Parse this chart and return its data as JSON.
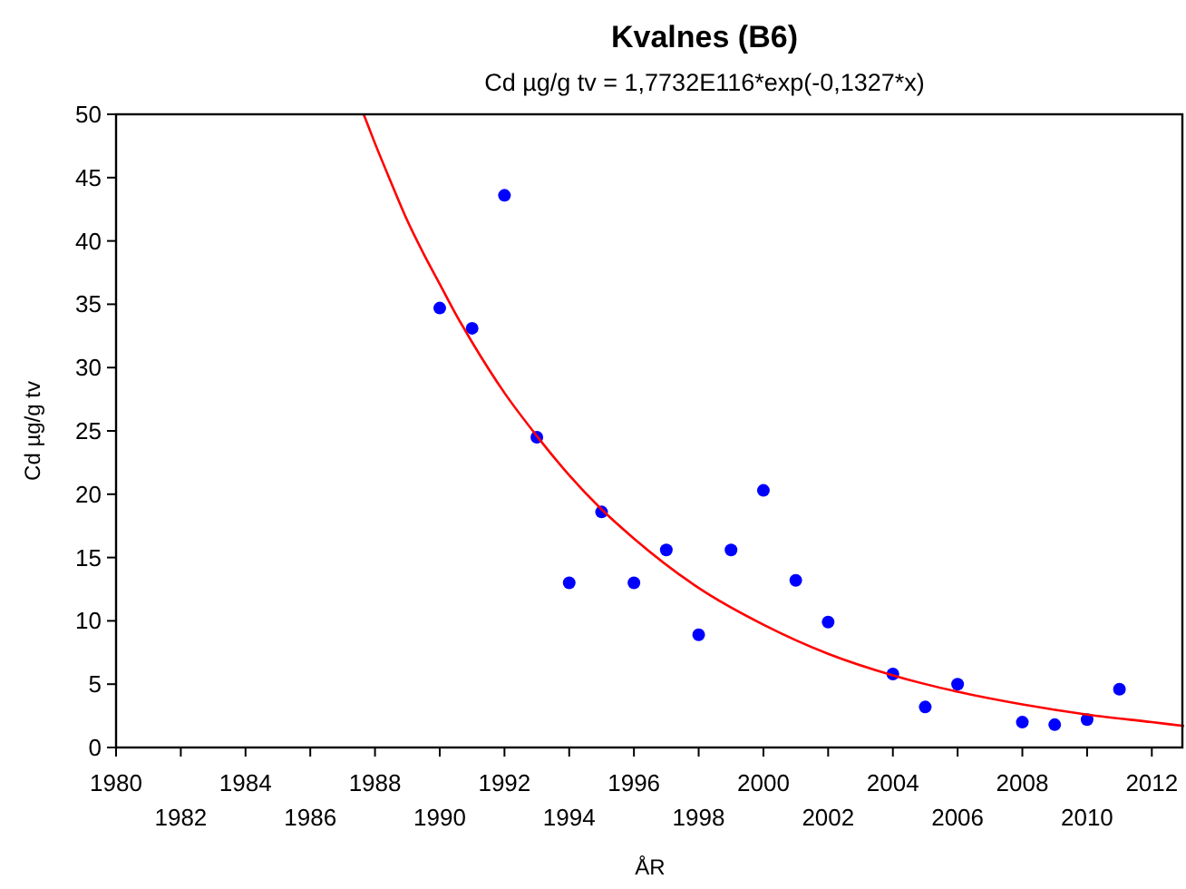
{
  "chart_data": {
    "type": "scatter",
    "title": "Kvalnes (B6)",
    "subtitle": "Cd µg/g tv = 1,7732E116*exp(-0,1327*x)",
    "xlabel": "ÅR",
    "ylabel": "Cd µg/g tv",
    "xlim": [
      1980,
      2013
    ],
    "xticks": [
      1980,
      {
        "value": 1982,
        "label": null
      },
      1984,
      {
        "value": 1986,
        "label": null
      },
      1988,
      {
        "value": 1990,
        "label": null
      },
      1992,
      {
        "value": 1994,
        "label": null
      },
      1996,
      {
        "value": 1998,
        "label": null
      },
      2000,
      {
        "value": 2002,
        "label": null
      },
      2004,
      {
        "value": 2006,
        "label": null
      },
      2008,
      {
        "value": 2010,
        "label": null
      },
      2012
    ],
    "x2lim": [
      1980,
      2013
    ],
    "x2ticks": [
      1982,
      1986,
      1990,
      1994,
      1998,
      2002,
      2006,
      2010
    ],
    "ylim": [
      0,
      50
    ],
    "yticks": [
      0,
      5,
      10,
      15,
      20,
      25,
      30,
      35,
      40,
      45,
      50
    ],
    "grid": false,
    "series": [
      {
        "color": "#0000ff",
        "marker": "circle",
        "x": [
          1990,
          1991,
          1992,
          1993,
          1994,
          1995,
          1996,
          1997,
          1998,
          1999,
          2000,
          2001,
          2002,
          2004,
          2005,
          2006,
          2008,
          2009,
          2010,
          2011
        ],
        "values": [
          34.7,
          33.1,
          43.6,
          24.5,
          13,
          18.6,
          13,
          15.6,
          8.9,
          15.6,
          20.3,
          13.2,
          9.9,
          5.8,
          3.2,
          5.0,
          2.0,
          1.8,
          2.2,
          4.6
        ]
      },
      {
        "type": "line",
        "color": "#ff0000",
        "marker": "none",
        "line_style": "solid",
        "x": [
          1987.65,
          1988,
          1988.5,
          1989,
          1989.5,
          1990,
          1990.5,
          1991,
          1992,
          1993,
          1994,
          1995,
          1996,
          1998,
          2000,
          2002,
          2004,
          2006,
          2008,
          2010,
          2012,
          2013
        ],
        "values": [
          50,
          47.7,
          44.6,
          41.6,
          39.0,
          36.6,
          34.2,
          32.0,
          28.0,
          24.6,
          21.5,
          18.8,
          16.5,
          12.6,
          9.7,
          7.4,
          5.7,
          4.4,
          3.4,
          2.6,
          2.0,
          1.7
        ]
      }
    ]
  }
}
